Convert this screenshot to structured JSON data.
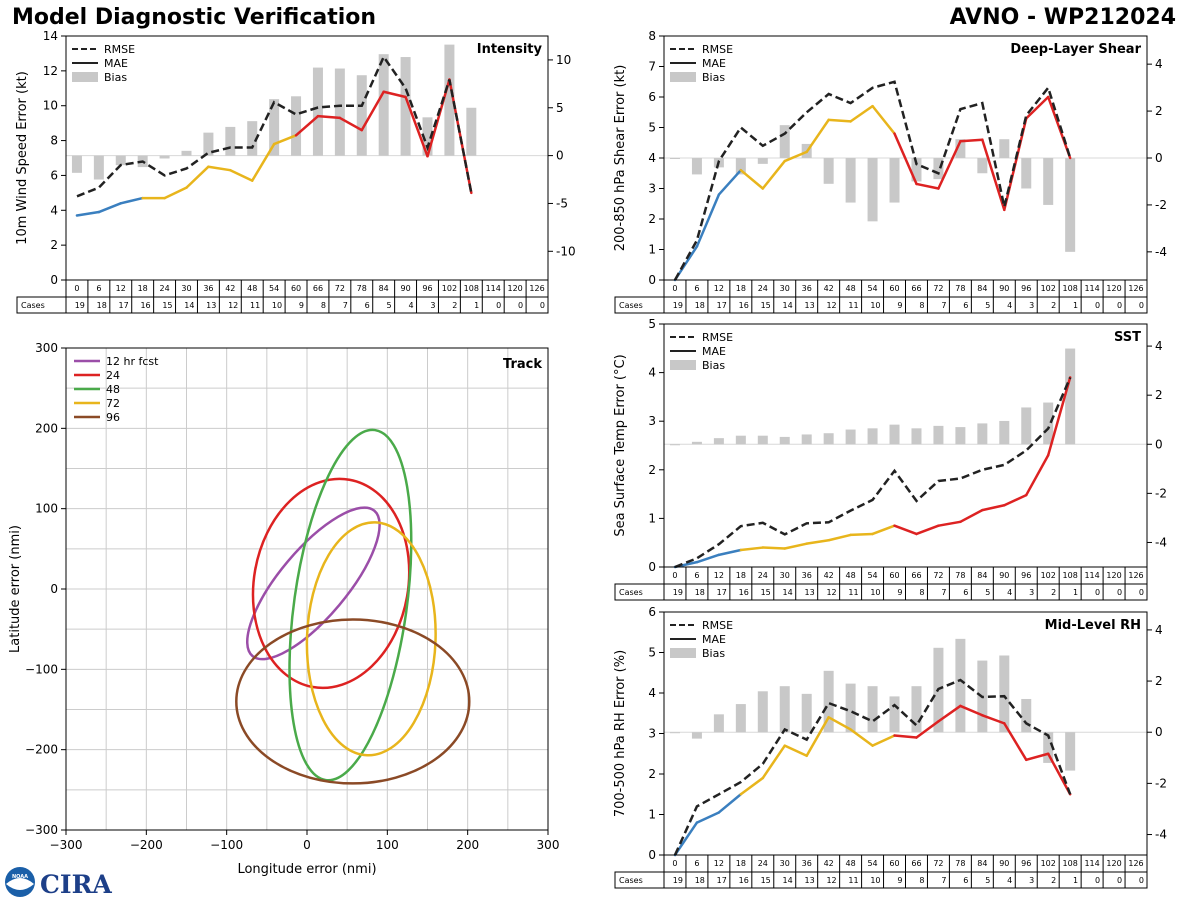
{
  "header": {
    "title": "Model Diagnostic Verification",
    "model_label": "AVNO - WP212024"
  },
  "logos": {
    "noaa": "NOAA",
    "cira": "CIRA"
  },
  "colors": {
    "rmse": "#222222",
    "bias": "#c8c8c8",
    "early": "#3a7fbf",
    "mid": "#e8b51c",
    "late": "#dd2222",
    "grid": "#cccccc"
  },
  "legend_labels": {
    "rmse": "RMSE",
    "mae": "MAE",
    "bias": "Bias"
  },
  "table": {
    "hours": [
      "0",
      "6",
      "12",
      "18",
      "24",
      "30",
      "36",
      "42",
      "48",
      "54",
      "60",
      "66",
      "72",
      "78",
      "84",
      "90",
      "96",
      "102",
      "108",
      "114",
      "120",
      "126"
    ],
    "cases": [
      "19",
      "18",
      "17",
      "16",
      "15",
      "14",
      "13",
      "12",
      "11",
      "10",
      "9",
      "8",
      "7",
      "6",
      "5",
      "4",
      "3",
      "2",
      "1",
      "0",
      "0",
      "0"
    ],
    "cases_label": "Cases"
  },
  "chart_data": [
    {
      "id": "intensity",
      "type": "line",
      "title": "Intensity",
      "ylabel": "10m Wind Speed Error (kt)",
      "ylim": [
        0,
        14
      ],
      "yticks": [
        0,
        2,
        4,
        6,
        8,
        10,
        12,
        14
      ],
      "y2lim": [
        -13,
        12.5
      ],
      "y2ticks": [
        -10,
        -5,
        0,
        5,
        10
      ],
      "x": [
        0,
        6,
        12,
        18,
        24,
        30,
        36,
        42,
        48,
        54,
        60,
        66,
        72,
        78,
        84,
        90,
        96,
        102,
        108
      ],
      "rmse": [
        4.8,
        5.3,
        6.6,
        6.8,
        6.0,
        6.4,
        7.3,
        7.6,
        7.6,
        10.2,
        9.5,
        9.9,
        10.0,
        10.0,
        12.8,
        11.0,
        7.6,
        11.5,
        5.0
      ],
      "mae": [
        3.7,
        3.9,
        4.4,
        4.7,
        4.7,
        5.3,
        6.5,
        6.3,
        5.7,
        7.8,
        8.3,
        9.4,
        9.3,
        8.6,
        10.8,
        10.5,
        7.1,
        11.5,
        5.0
      ],
      "bias": [
        -1.8,
        -2.5,
        -1.0,
        -1.2,
        -0.3,
        0.5,
        2.4,
        3.0,
        3.6,
        5.9,
        6.2,
        9.2,
        9.1,
        8.4,
        10.6,
        10.3,
        4.0,
        11.6,
        5.0
      ]
    },
    {
      "id": "shear",
      "type": "line",
      "title": "Deep-Layer Shear",
      "ylabel": "200-850 hPa Shear Error (kt)",
      "ylim": [
        0,
        8
      ],
      "yticks": [
        0,
        1,
        2,
        3,
        4,
        5,
        6,
        7,
        8
      ],
      "y2lim": [
        -5.2,
        5.2
      ],
      "y2ticks": [
        -4,
        -2,
        0,
        2,
        4
      ],
      "x": [
        0,
        6,
        12,
        18,
        24,
        30,
        36,
        42,
        48,
        54,
        60,
        66,
        72,
        78,
        84,
        90,
        96,
        102,
        108
      ],
      "rmse": [
        0.0,
        1.3,
        3.9,
        5.0,
        4.4,
        4.8,
        5.5,
        6.1,
        5.8,
        6.3,
        6.5,
        3.8,
        3.5,
        5.6,
        5.8,
        2.4,
        5.4,
        6.3,
        4.0
      ],
      "mae": [
        0.0,
        1.1,
        2.8,
        3.6,
        3.0,
        3.9,
        4.2,
        5.25,
        5.2,
        5.7,
        4.8,
        3.15,
        3.0,
        4.55,
        4.6,
        2.3,
        5.3,
        6.0,
        4.0
      ],
      "bias": [
        0.0,
        -0.7,
        -0.4,
        -0.7,
        -0.25,
        1.4,
        0.6,
        -1.1,
        -1.9,
        -2.7,
        -1.9,
        -1.0,
        -0.9,
        0.8,
        -0.65,
        0.8,
        -1.3,
        -2.0,
        -4.0
      ]
    },
    {
      "id": "sst",
      "type": "line",
      "title": "SST",
      "ylabel": "Sea Surface Temp Error (°C)",
      "ylim": [
        0,
        5
      ],
      "yticks": [
        0,
        1,
        2,
        3,
        4,
        5
      ],
      "y2lim": [
        -5.0,
        4.9
      ],
      "y2ticks": [
        -4,
        -2,
        0,
        2,
        4
      ],
      "x": [
        0,
        6,
        12,
        18,
        24,
        30,
        36,
        42,
        48,
        54,
        60,
        66,
        72,
        78,
        84,
        90,
        96,
        102,
        108
      ],
      "rmse": [
        0.0,
        0.18,
        0.47,
        0.84,
        0.91,
        0.67,
        0.9,
        0.92,
        1.16,
        1.38,
        1.98,
        1.36,
        1.77,
        1.82,
        2.0,
        2.1,
        2.4,
        2.85,
        3.9
      ],
      "mae": [
        0.0,
        0.1,
        0.25,
        0.35,
        0.4,
        0.38,
        0.48,
        0.55,
        0.66,
        0.68,
        0.85,
        0.68,
        0.85,
        0.93,
        1.17,
        1.27,
        1.48,
        2.3,
        3.9
      ],
      "bias": [
        0.0,
        0.1,
        0.25,
        0.35,
        0.35,
        0.3,
        0.4,
        0.45,
        0.6,
        0.65,
        0.8,
        0.65,
        0.75,
        0.7,
        0.85,
        0.95,
        1.5,
        1.7,
        3.9
      ]
    },
    {
      "id": "rh",
      "type": "line",
      "title": "Mid-Level RH",
      "ylabel": "700-500 hPa RH Error (%)",
      "ylim": [
        0,
        6
      ],
      "yticks": [
        0,
        1,
        2,
        3,
        4,
        5,
        6
      ],
      "y2lim": [
        -4.8,
        4.7
      ],
      "y2ticks": [
        -4,
        -2,
        0,
        2,
        4
      ],
      "x": [
        0,
        6,
        12,
        18,
        24,
        30,
        36,
        42,
        48,
        54,
        60,
        66,
        72,
        78,
        84,
        90,
        96,
        102,
        108
      ],
      "rmse": [
        0.0,
        1.2,
        1.5,
        1.8,
        2.25,
        3.1,
        2.85,
        3.75,
        3.55,
        3.3,
        3.7,
        3.2,
        4.1,
        4.32,
        3.9,
        3.92,
        3.25,
        2.95,
        1.5
      ],
      "mae": [
        0.0,
        0.8,
        1.05,
        1.5,
        1.9,
        2.7,
        2.45,
        3.4,
        3.1,
        2.7,
        2.95,
        2.9,
        3.3,
        3.68,
        3.45,
        3.25,
        2.35,
        2.5,
        1.5
      ],
      "bias": [
        0.0,
        -0.25,
        0.7,
        1.1,
        1.6,
        1.8,
        1.5,
        2.4,
        1.9,
        1.8,
        1.4,
        1.8,
        3.3,
        3.65,
        2.8,
        3.0,
        1.3,
        -1.2,
        -1.5
      ]
    },
    {
      "id": "track",
      "type": "scatter",
      "title": "Track",
      "xlabel": "Longitude error (nmi)",
      "ylabel": "Latitude error (nmi)",
      "xlim": [
        -300,
        300
      ],
      "ylim": [
        -300,
        300
      ],
      "xticks": [
        -300,
        -200,
        -100,
        0,
        100,
        200,
        300
      ],
      "yticks": [
        -300,
        -200,
        -100,
        0,
        100,
        200,
        300
      ],
      "ellipses": [
        {
          "label": "12 hr fcst",
          "color": "#9b4ea8",
          "cx": 8,
          "cy": 7,
          "rx": 118,
          "ry": 42,
          "angle_deg": 50
        },
        {
          "label": "24",
          "color": "#dd2222",
          "cx": 30,
          "cy": 7,
          "rx": 131,
          "ry": 96,
          "angle_deg": 80
        },
        {
          "label": "48",
          "color": "#4aaa4a",
          "cx": 54,
          "cy": -20,
          "rx": 220,
          "ry": 70,
          "angle_deg": 82
        },
        {
          "label": "72",
          "color": "#e8b51c",
          "cx": 80,
          "cy": -62,
          "rx": 145,
          "ry": 80,
          "angle_deg": 88
        },
        {
          "label": "96",
          "color": "#8b4a26",
          "cx": 57,
          "cy": -140,
          "rx": 145,
          "ry": 102,
          "angle_deg": 0
        }
      ]
    }
  ]
}
